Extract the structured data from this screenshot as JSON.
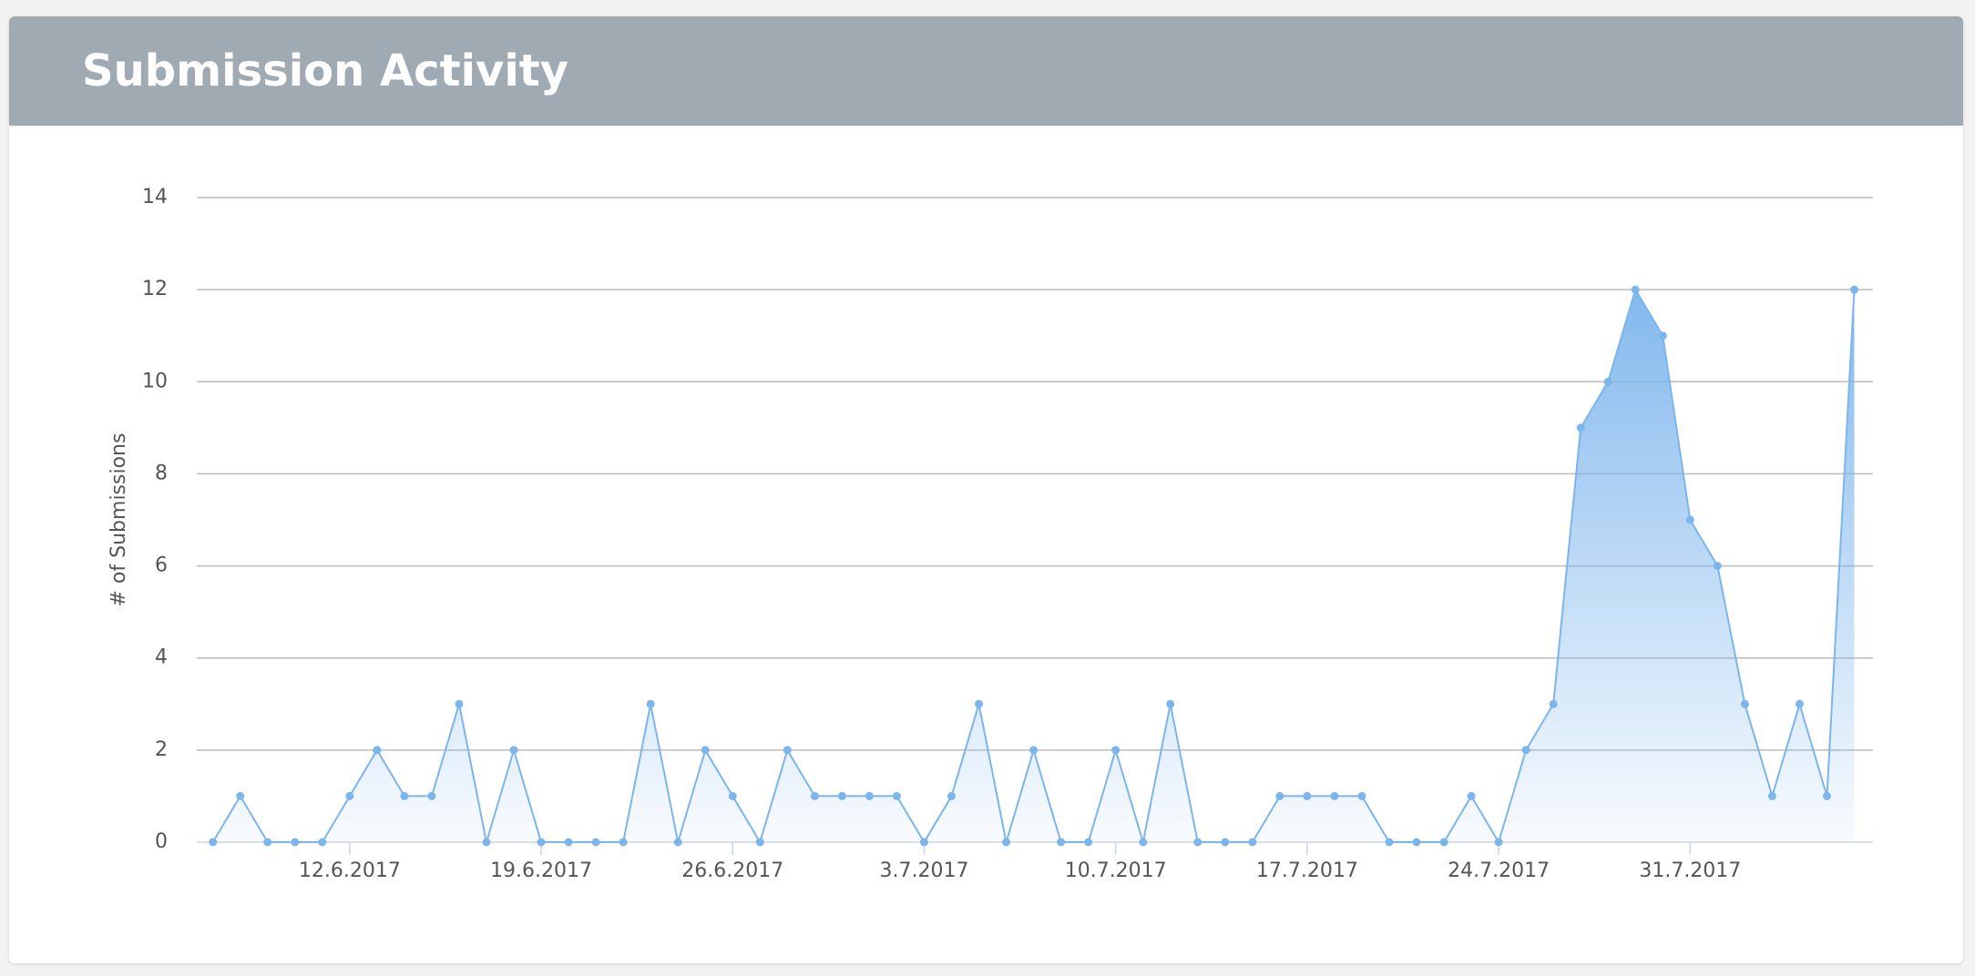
{
  "header": {
    "title": "Submission Activity"
  },
  "chart_data": {
    "type": "area",
    "y_label": "# of Submissions",
    "x": [
      "7.6.2017",
      "8.6.2017",
      "9.6.2017",
      "10.6.2017",
      "11.6.2017",
      "12.6.2017",
      "13.6.2017",
      "14.6.2017",
      "15.6.2017",
      "16.6.2017",
      "17.6.2017",
      "18.6.2017",
      "19.6.2017",
      "20.6.2017",
      "21.6.2017",
      "22.6.2017",
      "23.6.2017",
      "24.6.2017",
      "25.6.2017",
      "26.6.2017",
      "27.6.2017",
      "28.6.2017",
      "29.6.2017",
      "30.6.2017",
      "1.7.2017",
      "2.7.2017",
      "3.7.2017",
      "4.7.2017",
      "5.7.2017",
      "6.7.2017",
      "7.7.2017",
      "8.7.2017",
      "9.7.2017",
      "10.7.2017",
      "11.7.2017",
      "12.7.2017",
      "13.7.2017",
      "14.7.2017",
      "15.7.2017",
      "16.7.2017",
      "17.7.2017",
      "18.7.2017",
      "19.7.2017",
      "20.7.2017",
      "21.7.2017",
      "22.7.2017",
      "23.7.2017",
      "24.7.2017",
      "25.7.2017",
      "26.7.2017",
      "27.7.2017",
      "28.7.2017",
      "29.7.2017",
      "30.7.2017",
      "31.7.2017",
      "1.8.2017",
      "2.8.2017",
      "3.8.2017",
      "4.8.2017",
      "5.8.2017",
      "6.8.2017"
    ],
    "series": [
      {
        "name": "Submissions",
        "color": "#7cb5ec",
        "values": [
          0,
          1,
          0,
          0,
          0,
          1,
          2,
          1,
          1,
          3,
          0,
          2,
          0,
          0,
          0,
          0,
          3,
          0,
          2,
          1,
          0,
          2,
          1,
          1,
          1,
          1,
          0,
          1,
          3,
          0,
          2,
          0,
          0,
          2,
          0,
          3,
          0,
          0,
          0,
          1,
          1,
          1,
          1,
          0,
          0,
          0,
          1,
          0,
          2,
          3,
          9,
          10,
          12,
          11,
          7,
          6,
          3,
          1,
          3,
          1,
          12
        ]
      }
    ],
    "xticks": [
      "12.6.2017",
      "19.6.2017",
      "26.6.2017",
      "3.7.2017",
      "10.7.2017",
      "17.7.2017",
      "24.7.2017",
      "31.7.2017"
    ],
    "ylim": [
      0,
      14
    ],
    "yticks": [
      0,
      2,
      4,
      6,
      8,
      10,
      12,
      14
    ],
    "grid": true
  }
}
